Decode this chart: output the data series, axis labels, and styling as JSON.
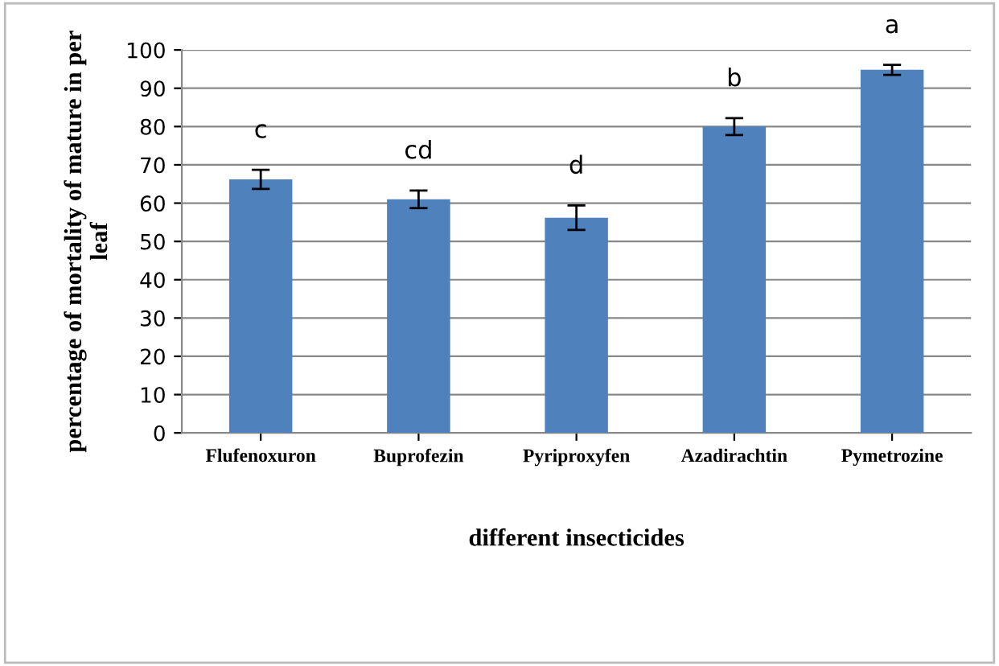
{
  "chart_data": {
    "type": "bar",
    "xlabel": "different insecticides",
    "ylabel": "percentage of mortality of mature in per\nleaf",
    "categories": [
      "Flufenoxuron",
      "Buprofezin",
      "Pyriproxyfen",
      "Azadirachtin",
      "Pymetrozine"
    ],
    "values": [
      66.2,
      61,
      56.2,
      80,
      94.8
    ],
    "errors": [
      2.5,
      2.3,
      3.2,
      2.2,
      1.3
    ],
    "color": "#4f81bd",
    "ylim": [
      0,
      100
    ],
    "yticks": [
      0,
      10,
      20,
      30,
      40,
      50,
      60,
      70,
      80,
      90,
      100
    ],
    "grid": "y",
    "value_labels": [
      "c",
      "cd",
      "d",
      "b",
      "a"
    ]
  }
}
